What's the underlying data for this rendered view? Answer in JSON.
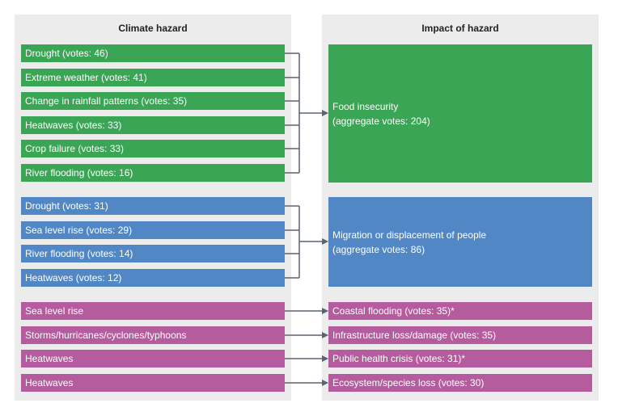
{
  "headers": {
    "left": "Climate hazard",
    "right": "Impact of hazard"
  },
  "colors": {
    "food": "#3aa555",
    "migration": "#5287c5",
    "other": "#b55c9f",
    "panel": "#ececec",
    "connector": "#5a6470"
  },
  "food_group": {
    "hazards": [
      "Drought (votes: 46)",
      "Extreme weather (votes: 41)",
      "Change in rainfall patterns (votes: 35)",
      "Heatwaves (votes: 33)",
      "Crop failure (votes: 33)",
      "River flooding (votes: 16)"
    ],
    "impact_line1": "Food insecurity",
    "impact_line2": "(aggregate votes: 204)"
  },
  "migration_group": {
    "hazards": [
      "Drought (votes: 31)",
      "Sea level rise (votes: 29)",
      "River flooding (votes: 14)",
      "Heatwaves (votes: 12)"
    ],
    "impact_line1": "Migration or displacement of people",
    "impact_line2": "(aggregate votes: 86)"
  },
  "single_pairs": [
    {
      "hazard": "Sea level rise",
      "impact": "Coastal flooding (votes: 35)*"
    },
    {
      "hazard": "Storms/hurricanes/cyclones/typhoons",
      "impact": "Infrastructure loss/damage (votes: 35)"
    },
    {
      "hazard": "Heatwaves",
      "impact": "Public health crisis (votes: 31)*"
    },
    {
      "hazard": "Heatwaves",
      "impact": "Ecosystem/species loss (votes: 30)"
    }
  ]
}
